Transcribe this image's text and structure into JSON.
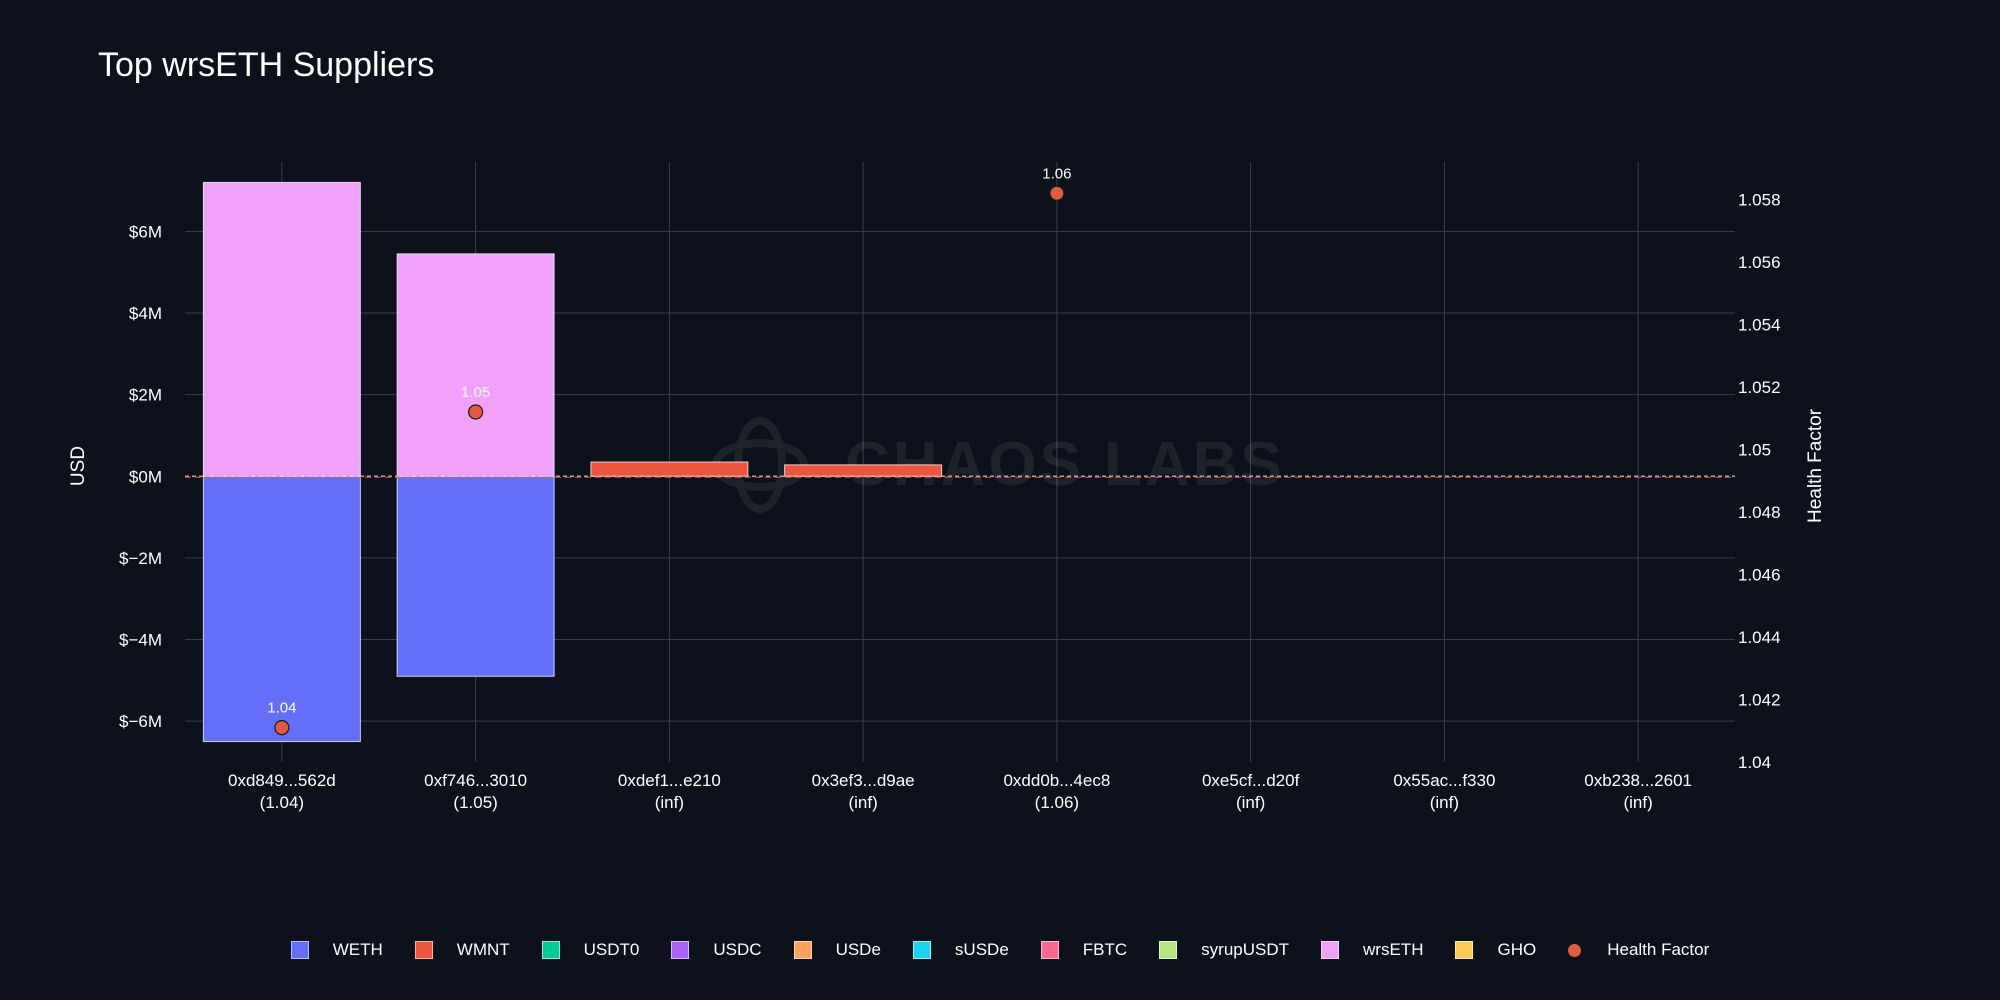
{
  "chart_data": {
    "type": "bar",
    "title": "Top wrsETH Suppliers",
    "ylabel": "USD",
    "y2label": "Health Factor",
    "ylim": [
      -7000000,
      7700000
    ],
    "y2lim": [
      1.04,
      1.0592
    ],
    "yticks": [
      {
        "v": 6000000,
        "label": "$6M"
      },
      {
        "v": 4000000,
        "label": "$4M"
      },
      {
        "v": 2000000,
        "label": "$2M"
      },
      {
        "v": 0,
        "label": "$0M"
      },
      {
        "v": -2000000,
        "label": "$−2M"
      },
      {
        "v": -4000000,
        "label": "$−4M"
      },
      {
        "v": -6000000,
        "label": "$−6M"
      }
    ],
    "y2ticks": [
      "1.058",
      "1.056",
      "1.054",
      "1.052",
      "1.05",
      "1.048",
      "1.046",
      "1.044",
      "1.042",
      "1.04"
    ],
    "categories": [
      {
        "addr": "0xd849...562d",
        "hf_label": "(1.04)"
      },
      {
        "addr": "0xf746...3010",
        "hf_label": "(1.05)"
      },
      {
        "addr": "0xdef1...e210",
        "hf_label": "(inf)"
      },
      {
        "addr": "0x3ef3...d9ae",
        "hf_label": "(inf)"
      },
      {
        "addr": "0xdd0b...4ec8",
        "hf_label": "(1.06)"
      },
      {
        "addr": "0xe5cf...d20f",
        "hf_label": "(inf)"
      },
      {
        "addr": "0x55ac...f330",
        "hf_label": "(inf)"
      },
      {
        "addr": "0xb238...2601",
        "hf_label": "(inf)"
      }
    ],
    "series": [
      {
        "name": "WETH",
        "color": "#636efa",
        "values": [
          -6500000,
          -4900000,
          0,
          0,
          0,
          0,
          0,
          0
        ]
      },
      {
        "name": "WMNT",
        "color": "#ef553b",
        "values": [
          0,
          0,
          350000,
          280000,
          0,
          0,
          0,
          0
        ]
      },
      {
        "name": "USDT0",
        "color": "#00cc96",
        "values": [
          0,
          0,
          0,
          0,
          0,
          0,
          0,
          0
        ]
      },
      {
        "name": "USDC",
        "color": "#ab63fa",
        "values": [
          0,
          0,
          0,
          0,
          0,
          0,
          0,
          0
        ]
      },
      {
        "name": "USDe",
        "color": "#ffa15a",
        "values": [
          0,
          0,
          0,
          0,
          0,
          0,
          0,
          0
        ]
      },
      {
        "name": "sUSDe",
        "color": "#19d3f3",
        "values": [
          0,
          0,
          0,
          0,
          0,
          0,
          0,
          0
        ]
      },
      {
        "name": "FBTC",
        "color": "#ff6692",
        "values": [
          0,
          0,
          0,
          0,
          0,
          0,
          0,
          0
        ]
      },
      {
        "name": "syrupUSDT",
        "color": "#b6e880",
        "values": [
          0,
          0,
          0,
          0,
          0,
          0,
          0,
          0
        ]
      },
      {
        "name": "wrsETH",
        "color": "#f2a1fb",
        "values": [
          7200000,
          5450000,
          0,
          0,
          0,
          0,
          0,
          0
        ]
      },
      {
        "name": "GHO",
        "color": "#fecb52",
        "values": [
          0,
          0,
          0,
          0,
          0,
          0,
          0,
          0
        ]
      }
    ],
    "health_factor": {
      "name": "Health Factor",
      "color": "#e55a3c",
      "points": [
        {
          "index": 0,
          "value": 1.0411,
          "label": "1.04"
        },
        {
          "index": 1,
          "value": 1.0512,
          "label": "1.05"
        },
        {
          "index": 4,
          "value": 1.0582,
          "label": "1.06"
        }
      ]
    },
    "legend": [
      "WETH",
      "WMNT",
      "USDT0",
      "USDC",
      "USDe",
      "sUSDe",
      "FBTC",
      "syrupUSDT",
      "wrsETH",
      "GHO",
      "Health Factor"
    ],
    "watermark": "CHAOS LABS"
  }
}
